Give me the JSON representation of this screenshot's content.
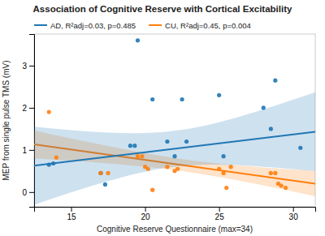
{
  "chart_data": {
    "type": "scatter",
    "title": "Association of Cognitive Reserve with Cortical Excitability",
    "x_label": "Cognitive Reserve Questionnaire (max=34)",
    "y_label": "MEP from single pulse TMS (mV)",
    "xlim": [
      12.5,
      31.5
    ],
    "ylim": [
      -0.35,
      3.75
    ],
    "xticks": [
      15,
      20,
      25,
      30
    ],
    "yticks": [
      0,
      1,
      2,
      3
    ],
    "legend": "upper left",
    "series": [
      {
        "name": "AD, R²adj=0.03, p=0.485",
        "x": [
          13.5,
          13.8,
          17.0,
          17.3,
          19.0,
          19.3,
          19.5,
          20.5,
          21.5,
          22.0,
          22.5,
          22.8,
          25.0,
          25.3,
          28.0,
          28.5,
          28.8,
          30.5
        ],
        "values": [
          0.65,
          0.68,
          0.45,
          0.18,
          1.1,
          1.1,
          3.6,
          2.2,
          1.2,
          0.85,
          2.2,
          1.2,
          2.3,
          0.85,
          2.0,
          1.5,
          2.65,
          1.05
        ],
        "line": {
          "x": [
            12.5,
            31.5
          ],
          "values": [
            0.625,
            1.43
          ]
        },
        "band": {
          "x": [
            12.5,
            15,
            17.5,
            20,
            22.5,
            25,
            27.5,
            30,
            31.5
          ],
          "lower": [
            -0.30197,
            -0.00912,
            0.26131,
            0.48449,
            0.61974,
            0.65145,
            0.61435,
            0.54357,
            0.49267
          ],
          "upper": [
            1.55197,
            1.47096,
            1.41237,
            1.40103,
            1.47763,
            1.65776,
            1.90671,
            2.18933,
            2.36733
          ]
        }
      },
      {
        "name": "CU, R²adj=0.45, p=0.004",
        "x": [
          13.5,
          14.0,
          17.0,
          17.5,
          19.5,
          19.8,
          20.0,
          20.2,
          20.5,
          21.5,
          22.0,
          22.2,
          25.0,
          25.3,
          25.5,
          25.8,
          28.5,
          28.8,
          29.0,
          29.2,
          29.5
        ],
        "values": [
          1.9,
          0.82,
          0.45,
          0.45,
          0.85,
          0.85,
          0.6,
          0.55,
          0.05,
          0.6,
          0.5,
          0.55,
          0.55,
          0.45,
          0.1,
          0.6,
          0.45,
          0.45,
          0.2,
          0.15,
          0.1
        ],
        "line": {
          "x": [
            12.5,
            31.5
          ],
          "values": [
            1.13,
            0.2
          ]
        },
        "band": {
          "x": [
            12.5,
            15,
            17.5,
            20,
            22.5,
            25,
            27.5,
            30,
            31.5
          ],
          "lower": [
            0.80097,
            0.7431,
            0.67905,
            0.60195,
            0.4987,
            0.35954,
            0.19321,
            0.01314,
            -0.09828
          ],
          "upper": [
            1.45903,
            1.27216,
            1.09147,
            0.92385,
            0.78236,
            0.67678,
            0.59837,
            0.5337,
            0.49828
          ]
        }
      }
    ]
  }
}
